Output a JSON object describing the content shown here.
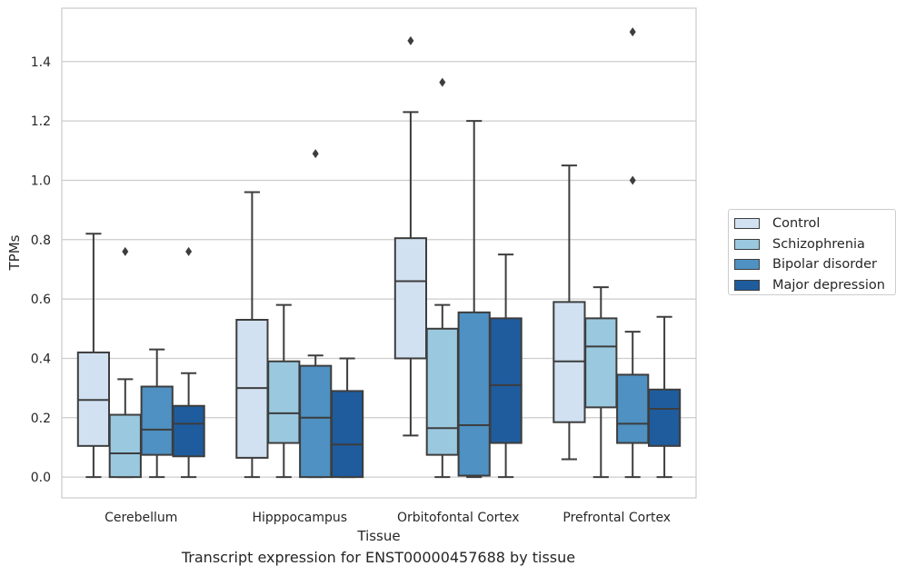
{
  "caption": "Transcript expression for ENST00000457688 by tissue",
  "chart_data": {
    "type": "box",
    "title": "",
    "xlabel": "Tissue",
    "ylabel": "TPMs",
    "ylim": [
      -0.07,
      1.58
    ],
    "yticks": [
      "0.0",
      "0.2",
      "0.4",
      "0.6",
      "0.8",
      "1.0",
      "1.2",
      "1.4"
    ],
    "grid": "horizontal",
    "legend_position": "right",
    "categories": [
      "Cerebellum",
      "Hipppocampus",
      "Orbitofontal Cortex",
      "Prefrontal Cortex"
    ],
    "series": [
      {
        "name": "Control",
        "color": "#d1e1f1",
        "boxes": [
          {
            "whislo": 0.0,
            "q1": 0.105,
            "med": 0.26,
            "q3": 0.42,
            "whishi": 0.82,
            "fliers": []
          },
          {
            "whislo": 0.0,
            "q1": 0.065,
            "med": 0.3,
            "q3": 0.53,
            "whishi": 0.96,
            "fliers": []
          },
          {
            "whislo": 0.14,
            "q1": 0.4,
            "med": 0.66,
            "q3": 0.805,
            "whishi": 1.23,
            "fliers": [
              1.47
            ]
          },
          {
            "whislo": 0.06,
            "q1": 0.185,
            "med": 0.39,
            "q3": 0.59,
            "whishi": 1.05,
            "fliers": []
          }
        ]
      },
      {
        "name": "Schizophrenia",
        "color": "#9ac8df",
        "boxes": [
          {
            "whislo": 0.0,
            "q1": 0.0,
            "med": 0.08,
            "q3": 0.21,
            "whishi": 0.33,
            "fliers": [
              0.76
            ]
          },
          {
            "whislo": 0.0,
            "q1": 0.115,
            "med": 0.215,
            "q3": 0.39,
            "whishi": 0.58,
            "fliers": []
          },
          {
            "whislo": 0.0,
            "q1": 0.075,
            "med": 0.165,
            "q3": 0.5,
            "whishi": 0.58,
            "fliers": [
              1.33
            ]
          },
          {
            "whislo": 0.0,
            "q1": 0.235,
            "med": 0.44,
            "q3": 0.535,
            "whishi": 0.64,
            "fliers": []
          }
        ]
      },
      {
        "name": "Bipolar disorder",
        "color": "#4e91c2",
        "boxes": [
          {
            "whislo": 0.0,
            "q1": 0.075,
            "med": 0.16,
            "q3": 0.305,
            "whishi": 0.43,
            "fliers": []
          },
          {
            "whislo": 0.0,
            "q1": 0.0,
            "med": 0.2,
            "q3": 0.375,
            "whishi": 0.41,
            "fliers": [
              1.09
            ]
          },
          {
            "whislo": 0.0,
            "q1": 0.005,
            "med": 0.175,
            "q3": 0.555,
            "whishi": 1.2,
            "fliers": []
          },
          {
            "whislo": 0.0,
            "q1": 0.115,
            "med": 0.18,
            "q3": 0.345,
            "whishi": 0.49,
            "fliers": [
              1.0,
              1.5
            ]
          }
        ]
      },
      {
        "name": "Major depression",
        "color": "#1e5c9e",
        "boxes": [
          {
            "whislo": 0.0,
            "q1": 0.07,
            "med": 0.18,
            "q3": 0.24,
            "whishi": 0.35,
            "fliers": [
              0.76
            ]
          },
          {
            "whislo": 0.0,
            "q1": 0.0,
            "med": 0.11,
            "q3": 0.29,
            "whishi": 0.4,
            "fliers": []
          },
          {
            "whislo": 0.0,
            "q1": 0.115,
            "med": 0.31,
            "q3": 0.535,
            "whishi": 0.75,
            "fliers": []
          },
          {
            "whislo": 0.0,
            "q1": 0.105,
            "med": 0.23,
            "q3": 0.295,
            "whishi": 0.54,
            "fliers": []
          }
        ]
      }
    ]
  }
}
